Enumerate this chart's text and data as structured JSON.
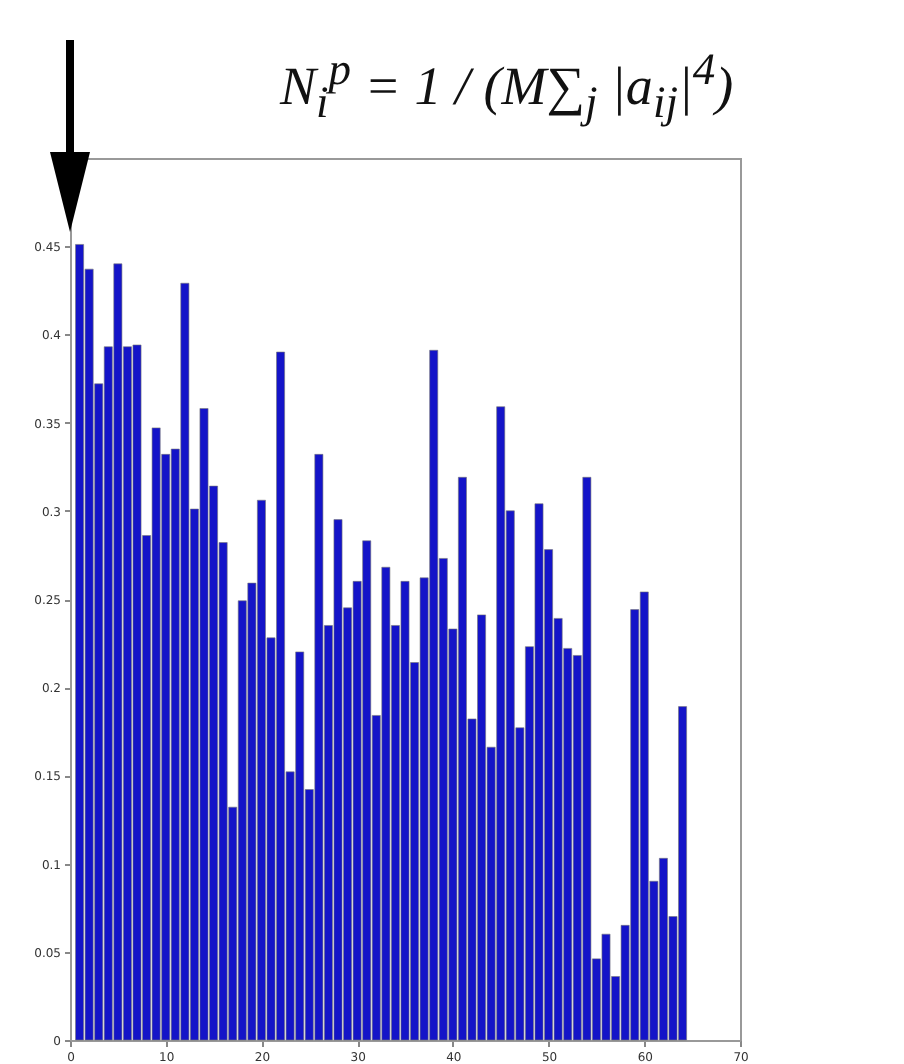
{
  "chart_data": {
    "type": "bar",
    "x": [
      1,
      2,
      3,
      4,
      5,
      6,
      7,
      8,
      9,
      10,
      11,
      12,
      13,
      14,
      15,
      16,
      17,
      18,
      19,
      20,
      21,
      22,
      23,
      24,
      25,
      26,
      27,
      28,
      29,
      30,
      31,
      32,
      33,
      34,
      35,
      36,
      37,
      38,
      39,
      40,
      41,
      42,
      43,
      44,
      45,
      46,
      47,
      48,
      49,
      50,
      51,
      52,
      53,
      54,
      55,
      56,
      57,
      58,
      59,
      60,
      61,
      62,
      63,
      64
    ],
    "values": [
      0.451,
      0.437,
      0.372,
      0.393,
      0.44,
      0.393,
      0.394,
      0.286,
      0.347,
      0.332,
      0.335,
      0.429,
      0.301,
      0.358,
      0.314,
      0.282,
      0.132,
      0.249,
      0.259,
      0.306,
      0.228,
      0.39,
      0.152,
      0.22,
      0.142,
      0.332,
      0.235,
      0.295,
      0.245,
      0.26,
      0.283,
      0.184,
      0.268,
      0.235,
      0.26,
      0.214,
      0.262,
      0.391,
      0.273,
      0.233,
      0.319,
      0.182,
      0.241,
      0.166,
      0.359,
      0.3,
      0.177,
      0.223,
      0.304,
      0.278,
      0.239,
      0.222,
      0.218,
      0.319,
      0.046,
      0.06,
      0.036,
      0.065,
      0.244,
      0.254,
      0.09,
      0.103,
      0.07,
      0.189
    ],
    "color": "#1414c8",
    "xlim": [
      0,
      70
    ],
    "xticks": [
      0,
      10,
      20,
      30,
      40,
      50,
      60,
      70
    ],
    "ylim": [
      0,
      0.5
    ],
    "yticks": [
      0,
      0.05,
      0.1,
      0.15,
      0.2,
      0.25,
      0.3,
      0.35,
      0.4,
      0.45
    ],
    "grid": false,
    "annotations": [
      "N$_{i}$$^{p}$ = 1 / (M∑$_{j}$ |a$_{ij}$|$^{4}$)"
    ]
  }
}
